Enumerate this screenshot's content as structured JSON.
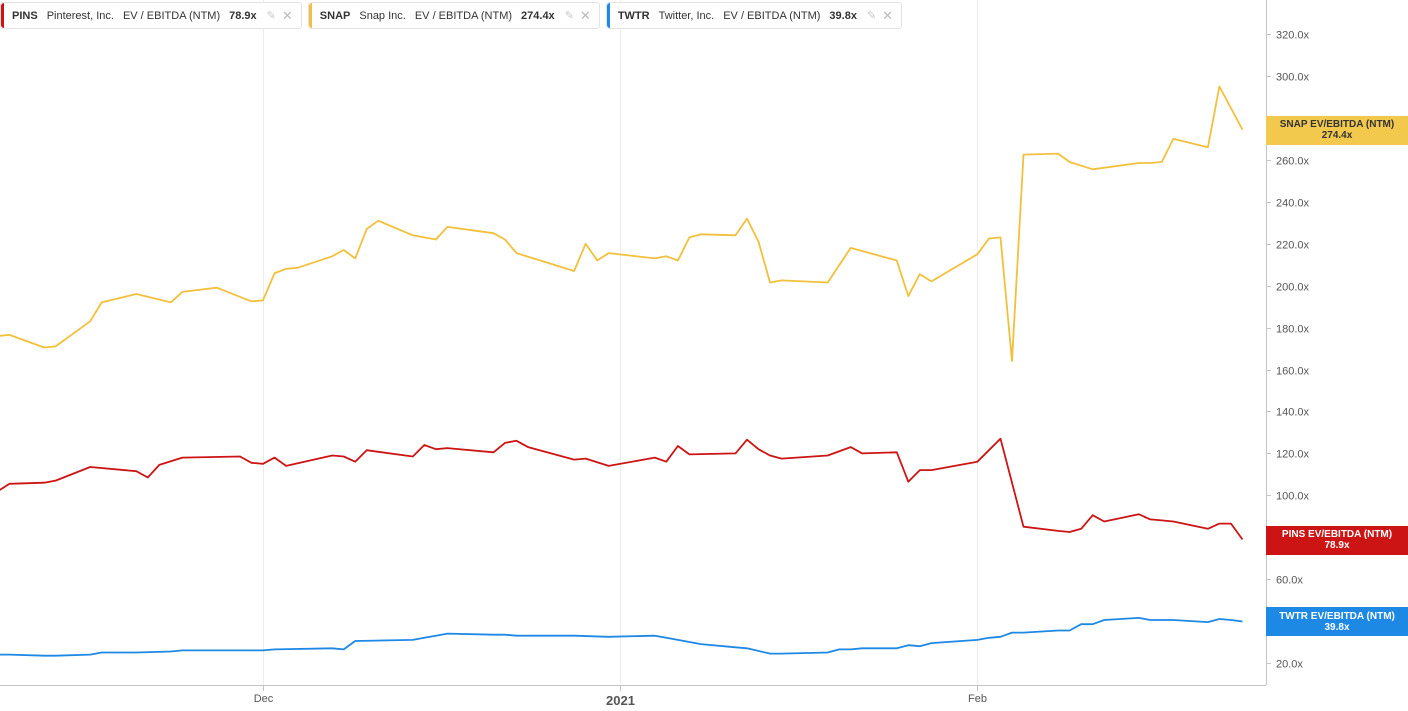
{
  "legend": [
    {
      "ticker": "PINS",
      "name": "Pinterest, Inc.",
      "metric": "EV / EBITDA (NTM)",
      "value": "78.9x",
      "color": "#cc1414"
    },
    {
      "ticker": "SNAP",
      "name": "Snap Inc.",
      "metric": "EV / EBITDA (NTM)",
      "value": "274.4x",
      "color": "#f2c03c"
    },
    {
      "ticker": "TWTR",
      "name": "Twitter, Inc.",
      "metric": "EV / EBITDA (NTM)",
      "value": "39.8x",
      "color": "#1e88e5"
    }
  ],
  "end_labels": {
    "snap": {
      "line1": "SNAP EV/EBITDA (NTM)",
      "line2": "274.4x",
      "bg": "#f2c94c",
      "fg": "#333333"
    },
    "pins": {
      "line1": "PINS EV/EBITDA (NTM)",
      "line2": "78.9x",
      "bg": "#cc1414",
      "fg": "#ffffff"
    },
    "twtr": {
      "line1": "TWTR EV/EBITDA (NTM)",
      "line2": "39.8x",
      "bg": "#1e88e5",
      "fg": "#ffffff"
    }
  },
  "chart_data": {
    "type": "line",
    "title": "",
    "xlabel": "",
    "ylabel": "",
    "ylim": [
      10,
      330
    ],
    "y_ticks": [
      {
        "value": 20,
        "label": "20.0x"
      },
      {
        "value": 60,
        "label": "60.0x"
      },
      {
        "value": 100,
        "label": "100.0x"
      },
      {
        "value": 120,
        "label": "120.0x"
      },
      {
        "value": 140,
        "label": "140.0x"
      },
      {
        "value": 160,
        "label": "160.0x"
      },
      {
        "value": 180,
        "label": "180.0x"
      },
      {
        "value": 200,
        "label": "200.0x"
      },
      {
        "value": 220,
        "label": "220.0x"
      },
      {
        "value": 240,
        "label": "240.0x"
      },
      {
        "value": 260,
        "label": "260.0x"
      },
      {
        "value": 300,
        "label": "300.0x"
      },
      {
        "value": 320,
        "label": "320.0x"
      }
    ],
    "x_ticks": [
      {
        "date": "2020-12-01",
        "label": "Dec",
        "bold": false
      },
      {
        "date": "2021-01-01",
        "label": "2021",
        "bold": true
      },
      {
        "date": "2021-02-01",
        "label": "Feb",
        "bold": false
      }
    ],
    "x_range": [
      "2020-11-08",
      "2021-02-25"
    ],
    "series": [
      {
        "name": "SNAP",
        "color": "#f2c03c",
        "points": [
          [
            "2020-11-08",
            176
          ],
          [
            "2020-11-09",
            176.5
          ],
          [
            "2020-11-12",
            170.5
          ],
          [
            "2020-11-13",
            171
          ],
          [
            "2020-11-16",
            183
          ],
          [
            "2020-11-17",
            192
          ],
          [
            "2020-11-20",
            196
          ],
          [
            "2020-11-23",
            192
          ],
          [
            "2020-11-24",
            197
          ],
          [
            "2020-11-27",
            199
          ],
          [
            "2020-11-30",
            192.5
          ],
          [
            "2020-12-01",
            193
          ],
          [
            "2020-12-02",
            206
          ],
          [
            "2020-12-03",
            208
          ],
          [
            "2020-12-04",
            208.5
          ],
          [
            "2020-12-07",
            214
          ],
          [
            "2020-12-08",
            217
          ],
          [
            "2020-12-09",
            213
          ],
          [
            "2020-12-10",
            227
          ],
          [
            "2020-12-11",
            231
          ],
          [
            "2020-12-14",
            224
          ],
          [
            "2020-12-16",
            222
          ],
          [
            "2020-12-17",
            228
          ],
          [
            "2020-12-21",
            225
          ],
          [
            "2020-12-22",
            222
          ],
          [
            "2020-12-23",
            215.5
          ],
          [
            "2020-12-28",
            207
          ],
          [
            "2020-12-29",
            220
          ],
          [
            "2020-12-30",
            212
          ],
          [
            "2020-12-31",
            215.5
          ],
          [
            "2021-01-04",
            213
          ],
          [
            "2021-01-05",
            214
          ],
          [
            "2021-01-06",
            212
          ],
          [
            "2021-01-07",
            223
          ],
          [
            "2021-01-08",
            224.5
          ],
          [
            "2021-01-11",
            224
          ],
          [
            "2021-01-12",
            232
          ],
          [
            "2021-01-13",
            221
          ],
          [
            "2021-01-14",
            201.5
          ],
          [
            "2021-01-15",
            202.5
          ],
          [
            "2021-01-19",
            201.5
          ],
          [
            "2021-01-21",
            218
          ],
          [
            "2021-01-25",
            212
          ],
          [
            "2021-01-26",
            195
          ],
          [
            "2021-01-27",
            205.5
          ],
          [
            "2021-01-28",
            202
          ],
          [
            "2021-02-01",
            215
          ],
          [
            "2021-02-02",
            222.5
          ],
          [
            "2021-02-03",
            223
          ],
          [
            "2021-02-04",
            164
          ],
          [
            "2021-02-05",
            262.5
          ],
          [
            "2021-02-08",
            263
          ],
          [
            "2021-02-09",
            259
          ],
          [
            "2021-02-11",
            255.5
          ],
          [
            "2021-02-15",
            258.5
          ],
          [
            "2021-02-16",
            258.5
          ],
          [
            "2021-02-17",
            259
          ],
          [
            "2021-02-18",
            270
          ],
          [
            "2021-02-21",
            266
          ],
          [
            "2021-02-22",
            295
          ],
          [
            "2021-02-24",
            274.4
          ]
        ]
      },
      {
        "name": "PINS",
        "color": "#cc1414",
        "points": [
          [
            "2020-11-08",
            102
          ],
          [
            "2020-11-09",
            105.5
          ],
          [
            "2020-11-12",
            106
          ],
          [
            "2020-11-13",
            107
          ],
          [
            "2020-11-16",
            113.5
          ],
          [
            "2020-11-20",
            111.5
          ],
          [
            "2020-11-21",
            108.5
          ],
          [
            "2020-11-22",
            114.5
          ],
          [
            "2020-11-24",
            118
          ],
          [
            "2020-11-29",
            118.5
          ],
          [
            "2020-11-30",
            115.5
          ],
          [
            "2020-12-01",
            115
          ],
          [
            "2020-12-02",
            118
          ],
          [
            "2020-12-03",
            114
          ],
          [
            "2020-12-07",
            119
          ],
          [
            "2020-12-08",
            118.5
          ],
          [
            "2020-12-09",
            116
          ],
          [
            "2020-12-10",
            121.5
          ],
          [
            "2020-12-14",
            118.5
          ],
          [
            "2020-12-15",
            124
          ],
          [
            "2020-12-16",
            122
          ],
          [
            "2020-12-17",
            122.5
          ],
          [
            "2020-12-21",
            120.5
          ],
          [
            "2020-12-22",
            125
          ],
          [
            "2020-12-23",
            126
          ],
          [
            "2020-12-24",
            123
          ],
          [
            "2020-12-28",
            117
          ],
          [
            "2020-12-29",
            117.5
          ],
          [
            "2020-12-31",
            114
          ],
          [
            "2021-01-04",
            118
          ],
          [
            "2021-01-05",
            116
          ],
          [
            "2021-01-06",
            123.5
          ],
          [
            "2021-01-07",
            119.5
          ],
          [
            "2021-01-11",
            120
          ],
          [
            "2021-01-12",
            126.5
          ],
          [
            "2021-01-13",
            122
          ],
          [
            "2021-01-14",
            119
          ],
          [
            "2021-01-15",
            117.5
          ],
          [
            "2021-01-19",
            119
          ],
          [
            "2021-01-21",
            123
          ],
          [
            "2021-01-22",
            120
          ],
          [
            "2021-01-25",
            120.5
          ],
          [
            "2021-01-26",
            106.5
          ],
          [
            "2021-01-27",
            112
          ],
          [
            "2021-01-28",
            112
          ],
          [
            "2021-02-01",
            116
          ],
          [
            "2021-02-03",
            127
          ],
          [
            "2021-02-05",
            85
          ],
          [
            "2021-02-08",
            83
          ],
          [
            "2021-02-09",
            82.5
          ],
          [
            "2021-02-10",
            84
          ],
          [
            "2021-02-11",
            90.5
          ],
          [
            "2021-02-12",
            87.5
          ],
          [
            "2021-02-15",
            91
          ],
          [
            "2021-02-16",
            88.5
          ],
          [
            "2021-02-17",
            88
          ],
          [
            "2021-02-18",
            87.5
          ],
          [
            "2021-02-21",
            84
          ],
          [
            "2021-02-22",
            86.5
          ],
          [
            "2021-02-23",
            86.5
          ],
          [
            "2021-02-24",
            78.9
          ]
        ]
      },
      {
        "name": "TWTR",
        "color": "#1e88e5",
        "points": [
          [
            "2020-11-08",
            24
          ],
          [
            "2020-11-09",
            24
          ],
          [
            "2020-11-12",
            23.5
          ],
          [
            "2020-11-13",
            23.5
          ],
          [
            "2020-11-16",
            24
          ],
          [
            "2020-11-17",
            25
          ],
          [
            "2020-11-20",
            25
          ],
          [
            "2020-11-23",
            25.5
          ],
          [
            "2020-11-24",
            26
          ],
          [
            "2020-12-01",
            26
          ],
          [
            "2020-12-02",
            26.5
          ],
          [
            "2020-12-07",
            27
          ],
          [
            "2020-12-08",
            26.5
          ],
          [
            "2020-12-09",
            30.5
          ],
          [
            "2020-12-14",
            31
          ],
          [
            "2020-12-15",
            32
          ],
          [
            "2020-12-16",
            33
          ],
          [
            "2020-12-17",
            34
          ],
          [
            "2020-12-21",
            33.5
          ],
          [
            "2020-12-22",
            33.5
          ],
          [
            "2020-12-23",
            33
          ],
          [
            "2020-12-28",
            33
          ],
          [
            "2020-12-31",
            32.5
          ],
          [
            "2021-01-04",
            33
          ],
          [
            "2021-01-05",
            32
          ],
          [
            "2021-01-06",
            31
          ],
          [
            "2021-01-08",
            29
          ],
          [
            "2021-01-11",
            27.5
          ],
          [
            "2021-01-12",
            27
          ],
          [
            "2021-01-14",
            24.5
          ],
          [
            "2021-01-15",
            24.5
          ],
          [
            "2021-01-19",
            25
          ],
          [
            "2021-01-20",
            26.5
          ],
          [
            "2021-01-21",
            26.5
          ],
          [
            "2021-01-22",
            27
          ],
          [
            "2021-01-25",
            27
          ],
          [
            "2021-01-26",
            28.5
          ],
          [
            "2021-01-27",
            28
          ],
          [
            "2021-01-28",
            29.5
          ],
          [
            "2021-02-01",
            31
          ],
          [
            "2021-02-02",
            32
          ],
          [
            "2021-02-03",
            32.5
          ],
          [
            "2021-02-04",
            34.5
          ],
          [
            "2021-02-05",
            34.5
          ],
          [
            "2021-02-08",
            35.5
          ],
          [
            "2021-02-09",
            35.5
          ],
          [
            "2021-02-10",
            38.5
          ],
          [
            "2021-02-11",
            38.5
          ],
          [
            "2021-02-12",
            40.5
          ],
          [
            "2021-02-15",
            41.5
          ],
          [
            "2021-02-16",
            40.5
          ],
          [
            "2021-02-18",
            40.5
          ],
          [
            "2021-02-21",
            39.5
          ],
          [
            "2021-02-22",
            41
          ],
          [
            "2021-02-23",
            40.5
          ],
          [
            "2021-02-24",
            39.8
          ]
        ]
      }
    ]
  }
}
